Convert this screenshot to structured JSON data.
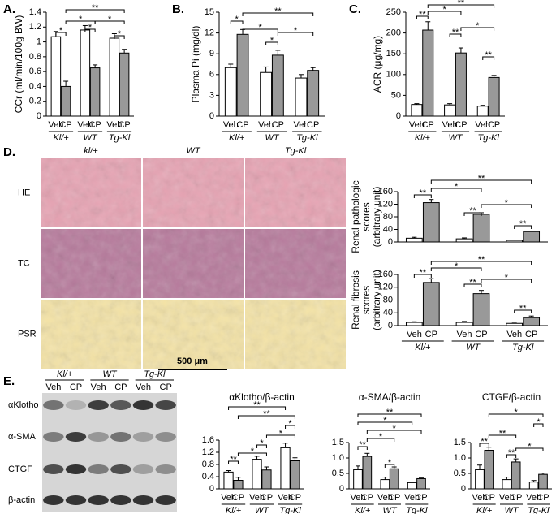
{
  "figure": {
    "panel_labels": [
      "A.",
      "B.",
      "C.",
      "D.",
      "E."
    ],
    "micrographs": {
      "columns": [
        "kl/+",
        "WT",
        "Tg-Kl"
      ],
      "rows": [
        "HE",
        "TC",
        "PSR"
      ],
      "scale_bar": "500 μm"
    },
    "blot": {
      "groups": [
        "Kl/+",
        "WT",
        "Tg-Kl"
      ],
      "lanes": [
        "Veh",
        "CP"
      ],
      "rows": [
        "αKlotho",
        "α-SMA",
        "CTGF",
        "β-actin"
      ]
    }
  },
  "chart_data": [
    {
      "type": "bar",
      "ylabel": [
        "CCr (ml/min/100g BW)"
      ],
      "categories": [
        "Kl/+",
        "WT",
        "Tg-Kl"
      ],
      "series": [
        {
          "name": "Veh",
          "color": "#ffffff",
          "values": [
            1.07,
            1.16,
            1.05
          ],
          "errors": [
            0.07,
            0.06,
            0.06
          ]
        },
        {
          "name": "CP",
          "color": "#999999",
          "values": [
            0.4,
            0.65,
            0.85
          ],
          "errors": [
            0.07,
            0.04,
            0.05
          ]
        }
      ],
      "ylim": [
        0,
        1.4
      ],
      "yticks": [
        0,
        0.2,
        0.4,
        0.6,
        0.8,
        1,
        1.2,
        1.4
      ],
      "annotations": [
        "*",
        "*",
        "*",
        "*",
        "*",
        "**"
      ]
    },
    {
      "type": "bar",
      "ylabel": [
        "Plasma Pi (mg/dl)"
      ],
      "categories": [
        "Kl/+",
        "WT",
        "Tg-Kl"
      ],
      "series": [
        {
          "name": "Veh",
          "color": "#ffffff",
          "values": [
            7.0,
            6.3,
            5.5
          ],
          "errors": [
            0.5,
            0.8,
            0.5
          ]
        },
        {
          "name": "CP",
          "color": "#999999",
          "values": [
            11.8,
            8.8,
            6.6
          ],
          "errors": [
            0.7,
            0.7,
            0.4
          ]
        }
      ],
      "ylim": [
        0,
        15
      ],
      "yticks": [
        0,
        3,
        6,
        9,
        12,
        15
      ],
      "annotations": [
        "*",
        "*",
        "*",
        "*",
        "**"
      ]
    },
    {
      "type": "bar",
      "ylabel": [
        "ACR (μg/mg)"
      ],
      "categories": [
        "Kl/+",
        "WT",
        "Tg-Kl"
      ],
      "series": [
        {
          "name": "Veh",
          "color": "#ffffff",
          "values": [
            28,
            27,
            24
          ],
          "errors": [
            2,
            3,
            2
          ]
        },
        {
          "name": "CP",
          "color": "#999999",
          "values": [
            207,
            152,
            93
          ],
          "errors": [
            20,
            12,
            5
          ]
        }
      ],
      "ylim": [
        0,
        250
      ],
      "yticks": [
        0,
        50,
        100,
        150,
        200,
        250
      ],
      "annotations": [
        "**",
        "**",
        "**",
        "*",
        "*",
        "**"
      ]
    },
    {
      "type": "bar",
      "ylabel": [
        "Renal pathologic",
        "scores",
        "(arbitrary unit)"
      ],
      "series": [
        {
          "color": "#ffffff",
          "values": [
            12,
            10,
            5
          ],
          "errors": [
            3,
            3,
            1
          ]
        },
        {
          "color": "#999999",
          "values": [
            125,
            88,
            33
          ],
          "errors": [
            10,
            5,
            1
          ]
        }
      ],
      "ylim": [
        0,
        160
      ],
      "yticks": [
        0,
        40,
        80,
        120,
        160
      ],
      "annotations": [
        "**",
        "**",
        "**",
        "*",
        "*",
        "**"
      ]
    },
    {
      "type": "bar",
      "ylabel": [
        "Renal fibrosis",
        "scores",
        "(arbitrary unit)"
      ],
      "categories": [
        "Kl/+",
        "WT",
        "Tg-Kl"
      ],
      "series": [
        {
          "name": "Veh",
          "color": "#ffffff",
          "values": [
            10,
            10,
            7
          ],
          "errors": [
            2,
            3,
            1
          ]
        },
        {
          "name": "CP",
          "color": "#999999",
          "values": [
            135,
            100,
            25
          ],
          "errors": [
            12,
            10,
            5
          ]
        }
      ],
      "ylim": [
        0,
        160
      ],
      "yticks": [
        0,
        40,
        80,
        120,
        160
      ],
      "annotations": [
        "**",
        "**",
        "**",
        "*",
        "*",
        "**"
      ]
    },
    {
      "type": "bar",
      "title": "αKlotho/β-actin",
      "categories": [
        "Kl/+",
        "WT",
        "Tg-Kl"
      ],
      "series": [
        {
          "name": "Veh",
          "color": "#ffffff",
          "values": [
            0.55,
            0.97,
            1.35
          ],
          "errors": [
            0.05,
            0.1,
            0.15
          ]
        },
        {
          "name": "CP",
          "color": "#999999",
          "values": [
            0.28,
            0.62,
            0.92
          ],
          "errors": [
            0.1,
            0.1,
            0.1
          ]
        }
      ],
      "ylim": [
        0,
        1.6
      ],
      "yticks": [
        0,
        0.4,
        0.8,
        1.2,
        1.6
      ],
      "annotations": [
        "**",
        "*",
        "*",
        "*",
        "*",
        "**",
        "**"
      ]
    },
    {
      "type": "bar",
      "title": "α-SMA/β-actin",
      "categories": [
        "Kl/+",
        "WT",
        "Tg-Kl"
      ],
      "series": [
        {
          "name": "Veh",
          "color": "#ffffff",
          "values": [
            0.62,
            0.3,
            0.2
          ],
          "errors": [
            0.12,
            0.08,
            0.02
          ]
        },
        {
          "name": "CP",
          "color": "#999999",
          "values": [
            1.05,
            0.65,
            0.33
          ],
          "errors": [
            0.1,
            0.06,
            0.02
          ]
        }
      ],
      "ylim": [
        0,
        1.5
      ],
      "yticks": [
        0,
        0.5,
        {
          "value": 1,
          "label": "1.0"
        },
        1.5
      ],
      "annotations": [
        "**",
        "*",
        "*",
        "*",
        "*",
        "**"
      ]
    },
    {
      "type": "bar",
      "title": "CTGF/β-actin",
      "categories": [
        "Kl/+",
        "WT",
        "Tg-Kl"
      ],
      "series": [
        {
          "name": "Veh",
          "color": "#ffffff",
          "values": [
            0.62,
            0.3,
            0.22
          ],
          "errors": [
            0.15,
            0.08,
            0.05
          ]
        },
        {
          "name": "CP",
          "color": "#999999",
          "values": [
            1.25,
            0.87,
            0.47
          ],
          "errors": [
            0.1,
            0.1,
            0.04
          ]
        }
      ],
      "ylim": [
        0,
        1.5
      ],
      "yticks": [
        0,
        0.5,
        {
          "value": 1,
          "label": "1.0"
        },
        1.5
      ],
      "annotations": [
        "**",
        "**",
        "**",
        "*",
        "*",
        "*"
      ]
    }
  ]
}
